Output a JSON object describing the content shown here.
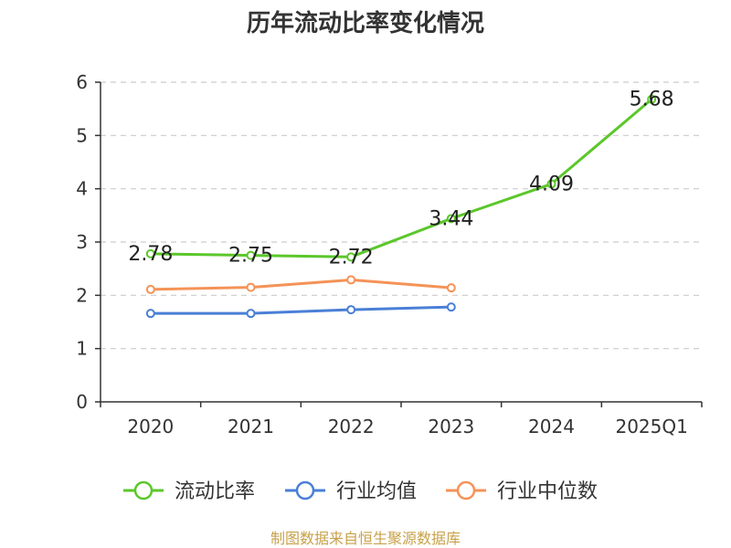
{
  "chart_data": {
    "type": "line",
    "title": "历年流动比率变化情况",
    "categories": [
      "2020",
      "2021",
      "2022",
      "2023",
      "2024",
      "2025Q1"
    ],
    "ylim": [
      0,
      6
    ],
    "yticks": [
      "0",
      "1",
      "2",
      "3",
      "4",
      "5",
      "6"
    ],
    "grid": true,
    "legend_position": "bottom",
    "series": [
      {
        "name": "流动比率",
        "color": "#5bc72b",
        "values": [
          2.78,
          2.75,
          2.72,
          3.44,
          4.09,
          5.68
        ],
        "labels": [
          "2.78",
          "2.75",
          "2.72",
          "3.44",
          "4.09",
          "5.68"
        ]
      },
      {
        "name": "行业均值",
        "color": "#4a7fd6",
        "values": [
          1.66,
          1.66,
          1.73,
          1.78,
          null,
          null
        ]
      },
      {
        "name": "行业中位数",
        "color": "#f59257",
        "values": [
          2.11,
          2.15,
          2.29,
          2.14,
          null,
          null
        ]
      }
    ],
    "source": "制图数据来自恒生聚源数据库"
  }
}
